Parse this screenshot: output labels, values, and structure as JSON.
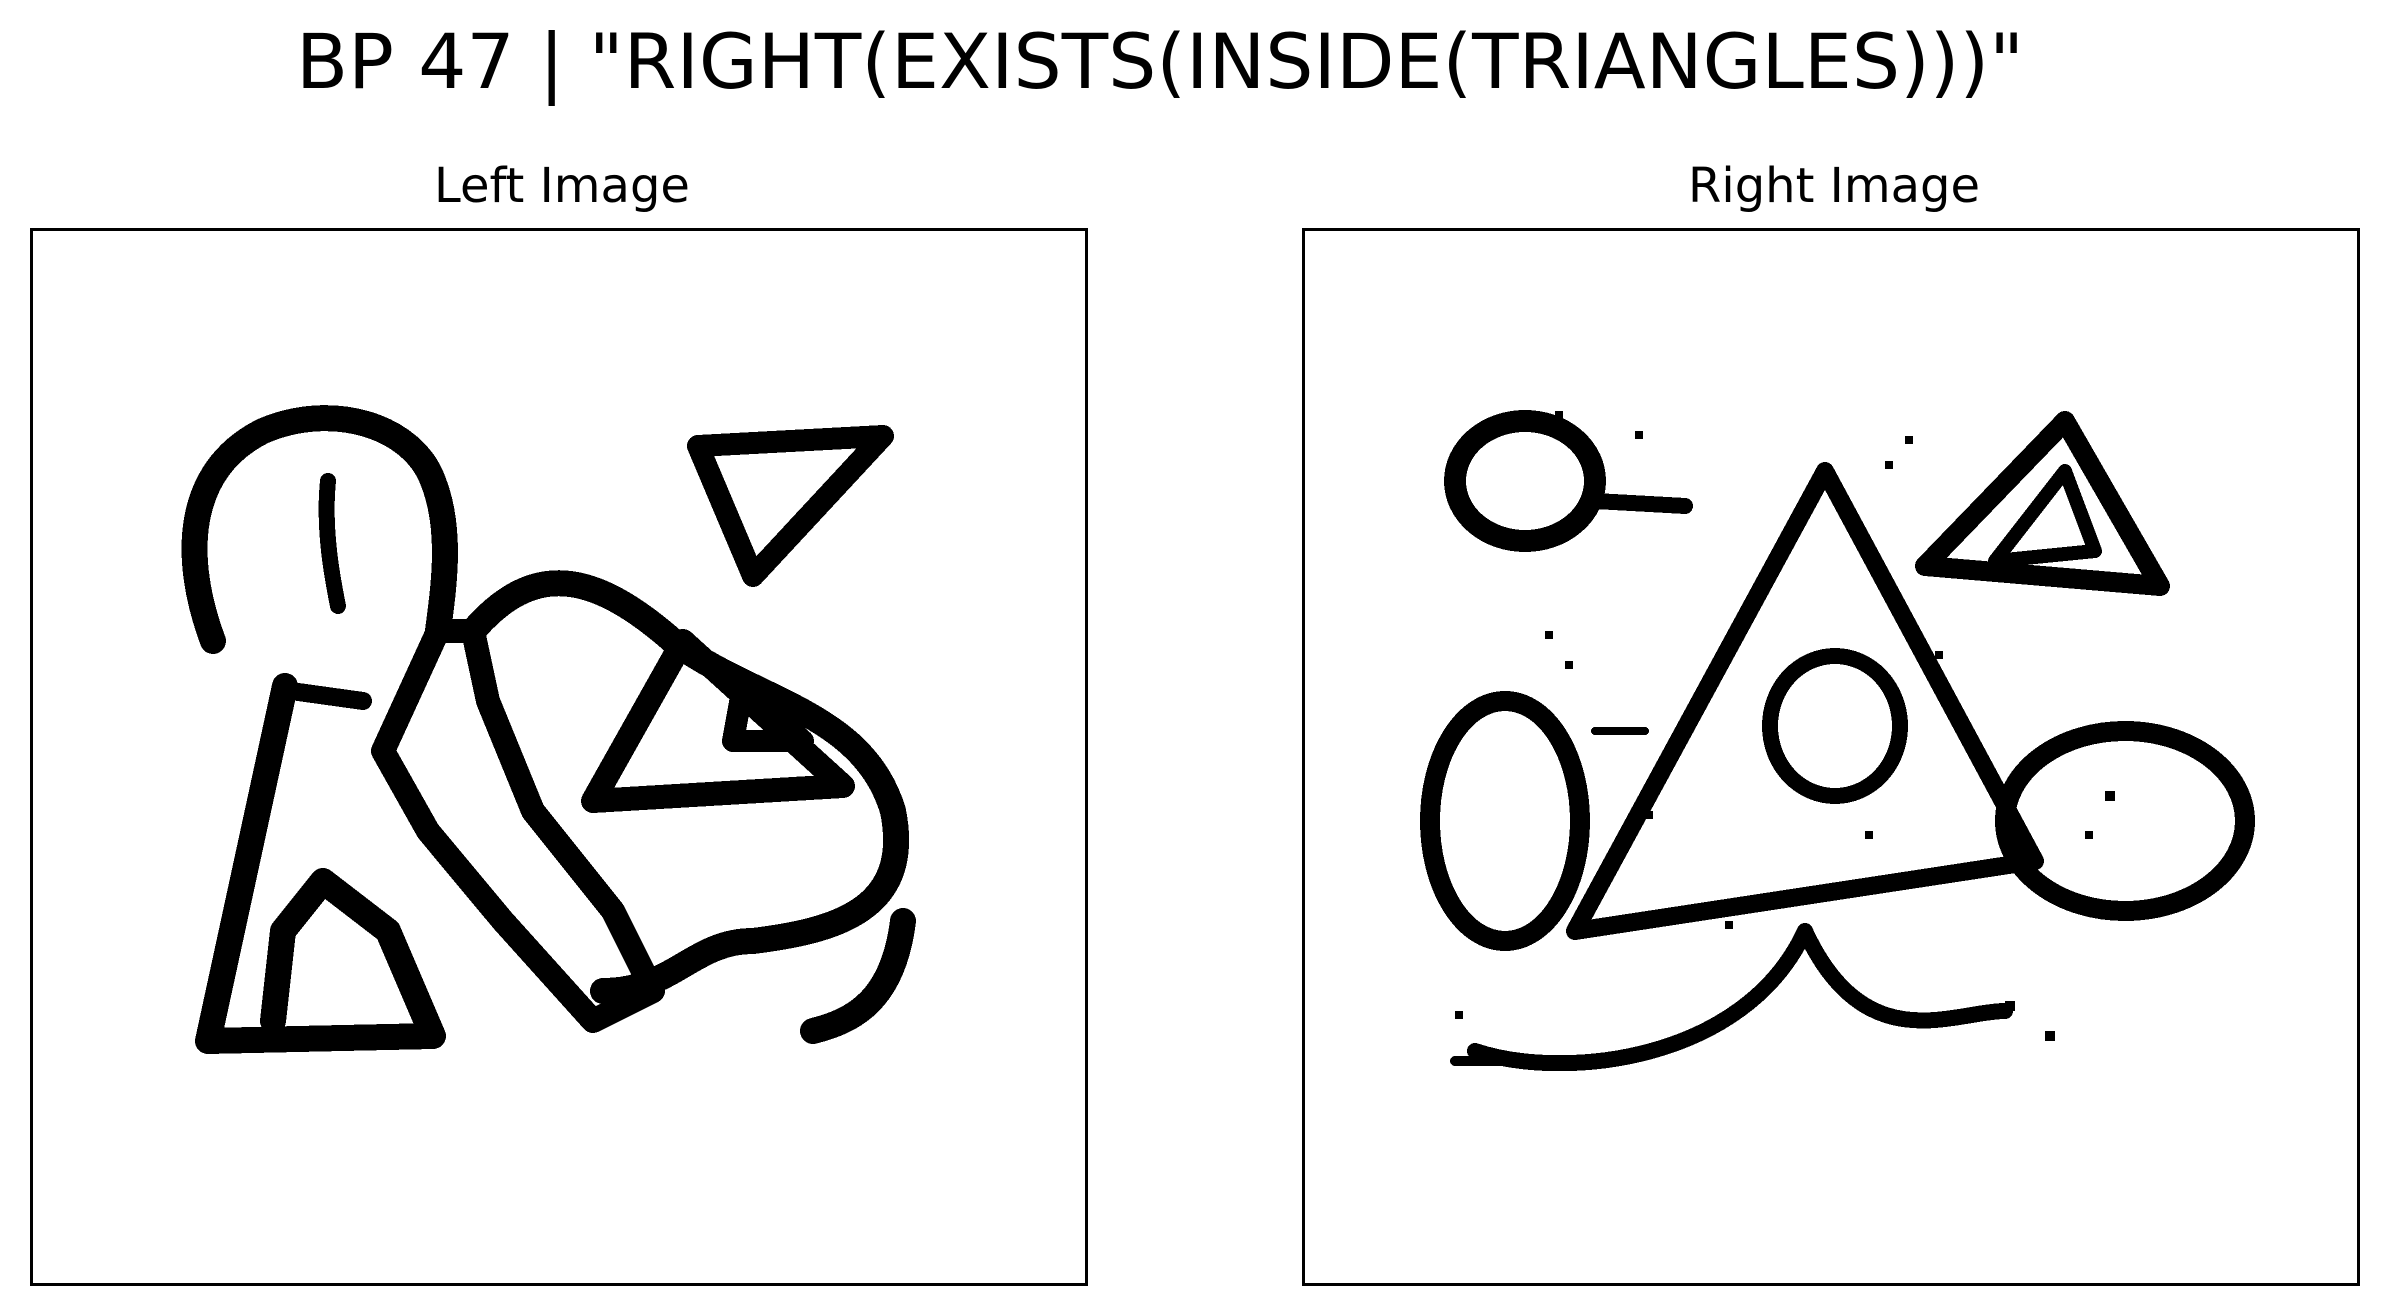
{
  "figure": {
    "suptitle": "BP 47 | \"RIGHT(EXISTS(INSIDE(TRIANGLES)))\"",
    "panels": [
      {
        "title": "Left Image"
      },
      {
        "title": "Right Image"
      }
    ]
  }
}
